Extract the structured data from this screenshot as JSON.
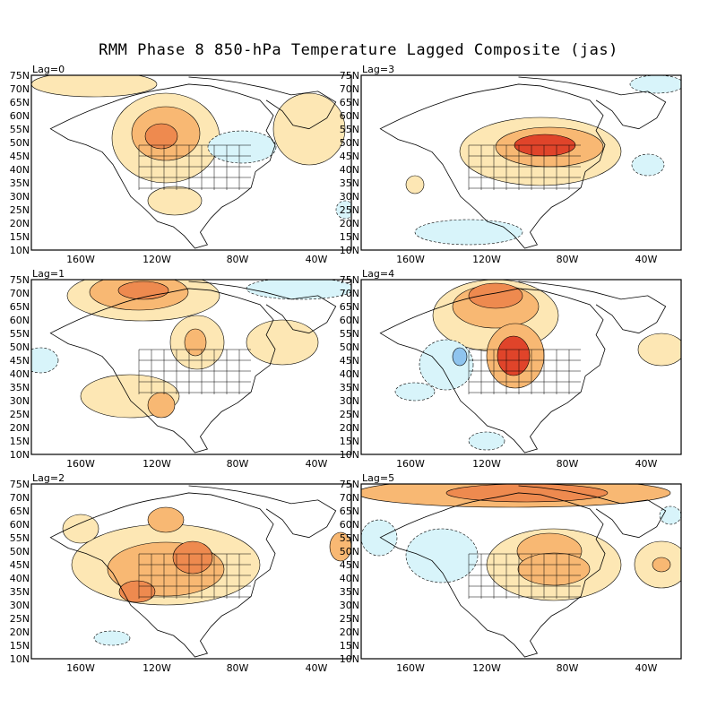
{
  "title": "RMM Phase 8 850-hPa Temperature Lagged Composite (jas)",
  "lat_ticks": [
    "75N",
    "70N",
    "65N",
    "60N",
    "55N",
    "50N",
    "45N",
    "40N",
    "35N",
    "30N",
    "25N",
    "20N",
    "15N",
    "10N"
  ],
  "lon_ticks": [
    "160W",
    "120W",
    "80W",
    "40W"
  ],
  "colors": {
    "warm1": "#fde7b4",
    "warm2": "#f8b873",
    "warm3": "#ee8a4f",
    "warm4": "#e0442a",
    "cool1": "#d8f4fa",
    "cool2": "#8fc4ee",
    "land_line": "#000000"
  },
  "panels": [
    {
      "label": "Lag=0"
    },
    {
      "label": "Lag=3"
    },
    {
      "label": "Lag=1"
    },
    {
      "label": "Lag=4"
    },
    {
      "label": "Lag=2"
    },
    {
      "label": "Lag=5"
    }
  ]
}
